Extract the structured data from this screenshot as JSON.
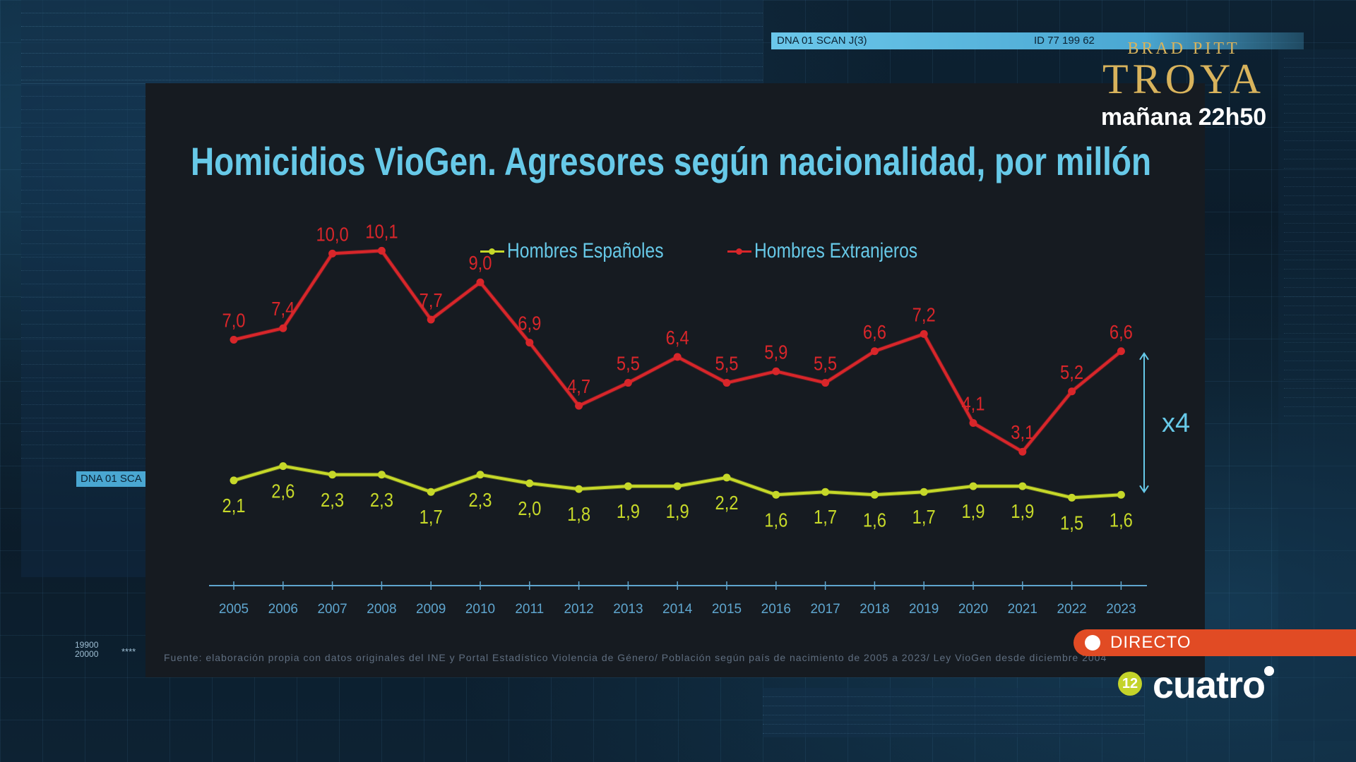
{
  "title": "Homicidios VioGen. Agresores según nacionalidad, por millón",
  "legend": {
    "series_a": "Hombres Españoles",
    "series_b": "Hombres Extranjeros"
  },
  "multiplier_label": "x4",
  "source": "Fuente: elaboración propia con datos originales del INE y Portal Estadístico Violencia de Género/ Población según país de nacimiento de 2005 a 2023/ Ley VioGen desde diciembre 2004",
  "overlay": {
    "scan_label": "DNA 01 SCAN J(3)",
    "scan_id": "ID 77 199 62",
    "scan_left": "DNA 01 SCA",
    "hud_numbers": [
      "19900",
      "20000"
    ],
    "hud_stars": "****"
  },
  "promo": {
    "small": "BRAD PITT",
    "big": "TROYA",
    "time": "mañana 22h50"
  },
  "live_label": "DIRECTO",
  "age_rating": "12",
  "channel_logo": "cuatro",
  "colors": {
    "spanish": "#c6d829",
    "foreign": "#d8262a",
    "title": "#67c9e8",
    "axis": "#5fa6cf"
  },
  "chart_data": {
    "type": "line",
    "title": "Homicidios VioGen. Agresores según nacionalidad, por millón",
    "x": [
      "2005",
      "2006",
      "2007",
      "2008",
      "2009",
      "2010",
      "2011",
      "2012",
      "2013",
      "2014",
      "2015",
      "2016",
      "2017",
      "2018",
      "2019",
      "2020",
      "2021",
      "2022",
      "2023"
    ],
    "series": [
      {
        "name": "Hombres Españoles",
        "values": [
          2.1,
          2.6,
          2.3,
          2.3,
          1.7,
          2.3,
          2.0,
          1.8,
          1.9,
          1.9,
          2.2,
          1.6,
          1.7,
          1.6,
          1.7,
          1.9,
          1.9,
          1.5,
          1.6
        ],
        "labels": [
          "2,1",
          "2,6",
          "2,3",
          "2,3",
          "1,7",
          "2,3",
          "2,0",
          "1,8",
          "1,9",
          "1,9",
          "2,2",
          "1,6",
          "1,7",
          "1,6",
          "1,7",
          "1,9",
          "1,9",
          "1,5",
          "1,6"
        ]
      },
      {
        "name": "Hombres Extranjeros",
        "values": [
          7.0,
          7.4,
          10.0,
          10.1,
          7.7,
          9.0,
          6.9,
          4.7,
          5.5,
          6.4,
          5.5,
          5.9,
          5.5,
          6.6,
          7.2,
          4.1,
          3.1,
          5.2,
          6.6
        ],
        "labels": [
          "7,0",
          "7,4",
          "10,0",
          "10,1",
          "7,7",
          "9,0",
          "6,9",
          "4,7",
          "5,5",
          "6,4",
          "5,5",
          "5,9",
          "5,5",
          "6,6",
          "7,2",
          "4,1",
          "3,1",
          "5,2",
          "6,6"
        ]
      }
    ],
    "annotation": "x4",
    "legend_position": "top-center",
    "grid": false
  }
}
